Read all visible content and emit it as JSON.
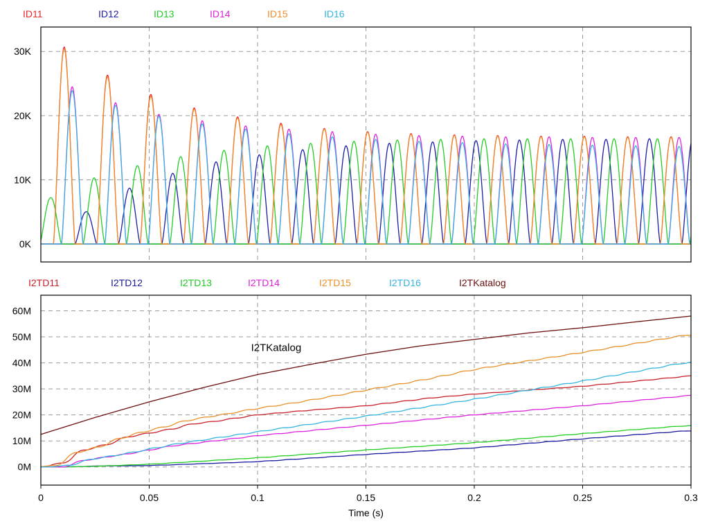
{
  "chart_data": [
    {
      "type": "line",
      "xlabel": "",
      "ylabel": "",
      "xlim": [
        0,
        0.3
      ],
      "ylim": [
        -2800,
        33800
      ],
      "y_ticks": [
        {
          "value": 0,
          "label": "0K"
        },
        {
          "value": 10000,
          "label": "10K"
        },
        {
          "value": 20000,
          "label": "20K"
        },
        {
          "value": 30000,
          "label": "30K"
        }
      ],
      "grid": true,
      "legend_placement": "top-left, above plot",
      "series": [
        {
          "name": "ID11",
          "color": "#e8262b",
          "phase_deg": 0,
          "peaks": [
            [
              0.0108,
              30700
            ],
            [
              0.0308,
              26300
            ],
            [
              0.0508,
              23300
            ],
            [
              0.0708,
              21200
            ],
            [
              0.0908,
              19800
            ],
            [
              0.111,
              18800
            ],
            [
              0.131,
              18000
            ],
            [
              0.151,
              17500
            ],
            [
              0.171,
              17200
            ],
            [
              0.191,
              17000
            ],
            [
              0.211,
              16900
            ],
            [
              0.231,
              16800
            ],
            [
              0.251,
              16800
            ],
            [
              0.271,
              16700
            ],
            [
              0.291,
              16700
            ]
          ]
        },
        {
          "name": "ID12",
          "color": "#1a1aa8",
          "phase_deg": 120,
          "peaks": [
            [
              0.0208,
              5000
            ],
            [
              0.0408,
              8700
            ],
            [
              0.0608,
              11000
            ],
            [
              0.0808,
              12800
            ],
            [
              0.101,
              13900
            ],
            [
              0.121,
              14700
            ],
            [
              0.141,
              15300
            ],
            [
              0.161,
              15700
            ],
            [
              0.181,
              15900
            ],
            [
              0.201,
              16100
            ],
            [
              0.221,
              16200
            ],
            [
              0.241,
              16300
            ],
            [
              0.261,
              16300
            ],
            [
              0.281,
              16400
            ]
          ]
        },
        {
          "name": "ID13",
          "color": "#22cc22",
          "phase_deg": 240,
          "peaks": [
            [
              0.0045,
              7200
            ],
            [
              0.0245,
              10300
            ],
            [
              0.0445,
              12200
            ],
            [
              0.0645,
              13600
            ],
            [
              0.0845,
              14600
            ],
            [
              0.1045,
              15300
            ],
            [
              0.1245,
              15700
            ],
            [
              0.1445,
              16000
            ],
            [
              0.1645,
              16200
            ],
            [
              0.1845,
              16300
            ],
            [
              0.2045,
              16400
            ],
            [
              0.2245,
              16400
            ],
            [
              0.2445,
              16400
            ],
            [
              0.2645,
              16400
            ],
            [
              0.2845,
              16400
            ]
          ]
        },
        {
          "name": "ID14",
          "color": "#dd22dd",
          "phase_deg": 180,
          "peaks": [
            [
              0.0145,
              24500
            ],
            [
              0.0345,
              22000
            ],
            [
              0.0545,
              20200
            ],
            [
              0.0745,
              19200
            ],
            [
              0.0945,
              18400
            ],
            [
              0.1145,
              17900
            ],
            [
              0.1345,
              17500
            ],
            [
              0.1545,
              17100
            ],
            [
              0.1745,
              16900
            ],
            [
              0.1945,
              16800
            ],
            [
              0.2145,
              16700
            ],
            [
              0.2345,
              16700
            ],
            [
              0.2545,
              16600
            ],
            [
              0.2745,
              16600
            ],
            [
              0.2945,
              16600
            ]
          ]
        },
        {
          "name": "ID15",
          "color": "#f08c2a",
          "phase_deg": 300,
          "peaks": [
            [
              0.0108,
              30400
            ],
            [
              0.0308,
              26000
            ],
            [
              0.0508,
              23000
            ],
            [
              0.0708,
              21000
            ],
            [
              0.0908,
              19600
            ],
            [
              0.111,
              18600
            ],
            [
              0.131,
              17900
            ],
            [
              0.151,
              17400
            ],
            [
              0.171,
              17100
            ],
            [
              0.191,
              16900
            ],
            [
              0.211,
              16800
            ],
            [
              0.231,
              16700
            ],
            [
              0.251,
              16700
            ],
            [
              0.271,
              16600
            ],
            [
              0.291,
              16600
            ]
          ]
        },
        {
          "name": "ID16",
          "color": "#33b5e0",
          "phase_deg": 60,
          "peaks": [
            [
              0.0145,
              23900
            ],
            [
              0.0345,
              21600
            ],
            [
              0.0545,
              19900
            ],
            [
              0.0745,
              18700
            ],
            [
              0.0945,
              17900
            ],
            [
              0.1145,
              17200
            ],
            [
              0.1345,
              16700
            ],
            [
              0.1545,
              16300
            ],
            [
              0.1745,
              16000
            ],
            [
              0.1945,
              15800
            ],
            [
              0.2145,
              15600
            ],
            [
              0.2345,
              15500
            ],
            [
              0.2545,
              15400
            ],
            [
              0.2745,
              15300
            ],
            [
              0.2945,
              15200
            ]
          ]
        }
      ]
    },
    {
      "type": "line",
      "xlabel": "Time (s)",
      "ylabel": "",
      "xlim": [
        0,
        0.3
      ],
      "ylim": [
        -7000000,
        66000000
      ],
      "x_ticks": [
        {
          "value": 0,
          "label": "0"
        },
        {
          "value": 0.05,
          "label": "0.05"
        },
        {
          "value": 0.1,
          "label": "0.1"
        },
        {
          "value": 0.15,
          "label": "0.15"
        },
        {
          "value": 0.2,
          "label": "0.2"
        },
        {
          "value": 0.25,
          "label": "0.25"
        },
        {
          "value": 0.3,
          "label": "0.3"
        }
      ],
      "y_ticks": [
        {
          "value": 0,
          "label": "0M"
        },
        {
          "value": 10000000,
          "label": "10M"
        },
        {
          "value": 20000000,
          "label": "20M"
        },
        {
          "value": 30000000,
          "label": "30M"
        },
        {
          "value": 40000000,
          "label": "40M"
        },
        {
          "value": 50000000,
          "label": "50M"
        },
        {
          "value": 60000000,
          "label": "60M"
        }
      ],
      "grid": true,
      "legend_placement": "top-left, above plot",
      "annotations": [
        {
          "text": "I2TKatalog",
          "x": 0.097,
          "y": 44500000
        }
      ],
      "series": [
        {
          "name": "I2TD11",
          "color": "#c8202a",
          "phase_deg": 0,
          "x": [
            0,
            0.005,
            0.01,
            0.015,
            0.02,
            0.025,
            0.03,
            0.04,
            0.05,
            0.06,
            0.07,
            0.08,
            0.1,
            0.12,
            0.15,
            0.18,
            0.2,
            0.25,
            0.3
          ],
          "values": [
            0,
            0,
            1500000,
            5000000,
            6500000,
            6800000,
            8500000,
            11500000,
            13000000,
            14500000,
            16500000,
            17500000,
            20000000,
            21500000,
            23500000,
            26500000,
            28000000,
            31000000,
            35000000
          ]
        },
        {
          "name": "I2TD12",
          "color": "#1a1aa0",
          "phase_deg": 120,
          "x": [
            0,
            0.015,
            0.02,
            0.05,
            0.1,
            0.15,
            0.2,
            0.25,
            0.3
          ],
          "values": [
            0,
            0,
            300000,
            500000,
            2000000,
            4800000,
            7300000,
            10800000,
            14000000
          ]
        },
        {
          "name": "I2TD13",
          "color": "#22cc22",
          "phase_deg": 240,
          "x": [
            0,
            0.01,
            0.02,
            0.05,
            0.1,
            0.15,
            0.2,
            0.25,
            0.3
          ],
          "values": [
            0,
            0,
            100000,
            1000000,
            3500000,
            6500000,
            9300000,
            12800000,
            16000000
          ]
        },
        {
          "name": "I2TD14",
          "color": "#dd22dd",
          "phase_deg": 180,
          "x": [
            0,
            0.01,
            0.015,
            0.02,
            0.03,
            0.04,
            0.05,
            0.06,
            0.08,
            0.1,
            0.15,
            0.2,
            0.25,
            0.3
          ],
          "values": [
            0,
            0,
            1000000,
            2500000,
            3800000,
            5000000,
            6500000,
            8000000,
            10000000,
            12000000,
            16000000,
            20000000,
            23500000,
            27500000
          ]
        },
        {
          "name": "I2TD15",
          "color": "#e8902a",
          "phase_deg": 300,
          "x": [
            0,
            0.005,
            0.01,
            0.015,
            0.02,
            0.025,
            0.03,
            0.04,
            0.05,
            0.06,
            0.07,
            0.08,
            0.1,
            0.12,
            0.15,
            0.18,
            0.2,
            0.25,
            0.3
          ],
          "values": [
            0,
            0,
            1500000,
            5000000,
            6700000,
            7000000,
            9000000,
            12000000,
            14000000,
            16000000,
            18500000,
            19500000,
            22500000,
            25000000,
            29500000,
            34000000,
            37500000,
            44000000,
            51000000
          ]
        },
        {
          "name": "I2TD16",
          "color": "#33b5e0",
          "phase_deg": 60,
          "x": [
            0,
            0.01,
            0.015,
            0.02,
            0.03,
            0.04,
            0.05,
            0.06,
            0.08,
            0.1,
            0.15,
            0.2,
            0.25,
            0.3
          ],
          "values": [
            0,
            0,
            1000000,
            2500000,
            3800000,
            5200000,
            6800000,
            8500000,
            11000000,
            13500000,
            19500000,
            26000000,
            33000000,
            40500000
          ]
        },
        {
          "name": "I2TKatalog",
          "color": "#6b0f0f",
          "smooth": true,
          "x": [
            0,
            0.025,
            0.05,
            0.075,
            0.1,
            0.125,
            0.15,
            0.175,
            0.2,
            0.225,
            0.25,
            0.275,
            0.3
          ],
          "values": [
            12500000,
            19000000,
            25000000,
            30500000,
            35500000,
            39500000,
            43300000,
            46500000,
            49000000,
            51500000,
            53500000,
            55800000,
            58000000
          ]
        }
      ]
    }
  ]
}
